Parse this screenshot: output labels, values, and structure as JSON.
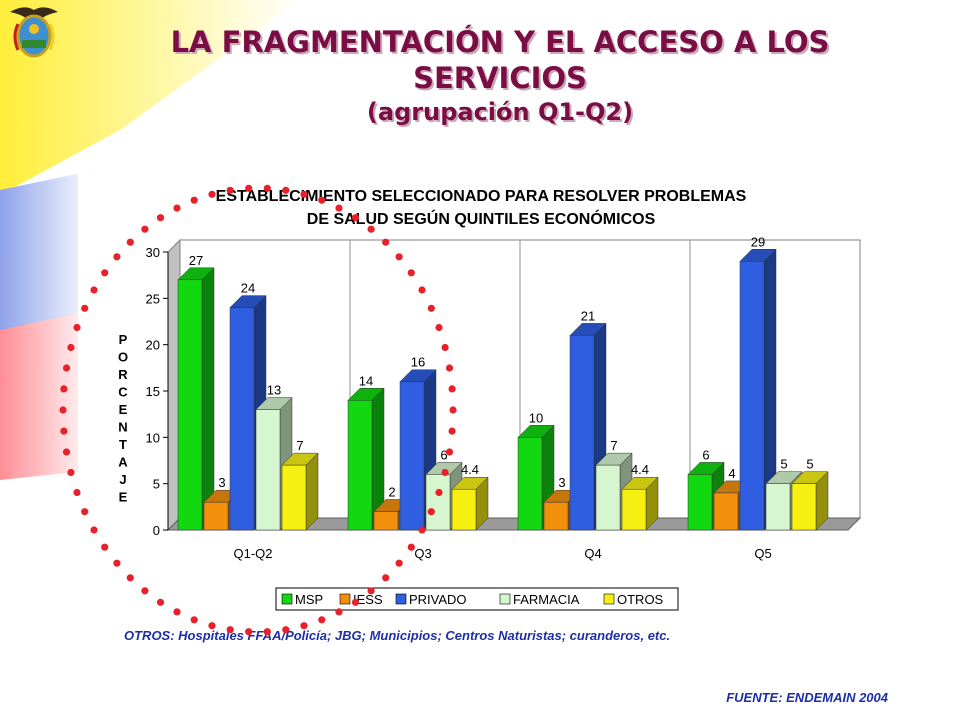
{
  "slide": {
    "title": "LA FRAGMENTACIÓN Y EL ACCESO A LOS SERVICIOS",
    "subtitle": "(agrupación Q1-Q2)",
    "note": "OTROS: Hospitales FFAA/Policía; JBG; Municipios; Centros Naturistas; curanderos, etc.",
    "source": "FUENTE: ENDEMAIN 2004",
    "logo_icon": "coat-of-arms-icon",
    "accent_colors": {
      "title": "#7a0d44",
      "note": "#1d2fa8",
      "dots": "#e8202a"
    }
  },
  "chart_data": {
    "type": "bar",
    "title_lines": [
      "ESTABLECIMIENTO SELECCIONADO PARA RESOLVER PROBLEMAS",
      "DE SALUD SEGÚN QUINTILES ECONÓMICOS"
    ],
    "ylabel": "PORCENTAJE",
    "ylabel_letters": [
      "P",
      "O",
      "R",
      "C",
      "E",
      "N",
      "T",
      "A",
      "J",
      "E"
    ],
    "ylim": [
      0,
      30
    ],
    "yticks": [
      "0",
      "5",
      "10",
      "15",
      "20",
      "25",
      "30"
    ],
    "categories": [
      "Q1-Q2",
      "Q3",
      "Q4",
      "Q5"
    ],
    "series": [
      {
        "name": "MSP",
        "color": "#12d812",
        "values": [
          27,
          14,
          10,
          6
        ],
        "labels": [
          "27",
          "14",
          "10",
          "6"
        ]
      },
      {
        "name": "IESS",
        "color": "#f2900c",
        "values": [
          3,
          2,
          3,
          4
        ],
        "labels": [
          "3",
          "2",
          "3",
          "4"
        ]
      },
      {
        "name": "PRIVADO",
        "color": "#2f5fe0",
        "values": [
          24,
          16,
          21,
          29
        ],
        "labels": [
          "24",
          "16",
          "21",
          "29"
        ]
      },
      {
        "name": "FARMACIA",
        "color": "#d6f6cf",
        "values": [
          13,
          6,
          7,
          5
        ],
        "labels": [
          "13",
          "6",
          "7",
          "5"
        ]
      },
      {
        "name": "OTROS",
        "color": "#f6f012",
        "values": [
          7,
          4.4,
          4.4,
          5
        ],
        "labels": [
          "7",
          "4.4",
          "4.4",
          "5"
        ]
      }
    ],
    "grid": "vertical separators",
    "legend": "bottom"
  }
}
